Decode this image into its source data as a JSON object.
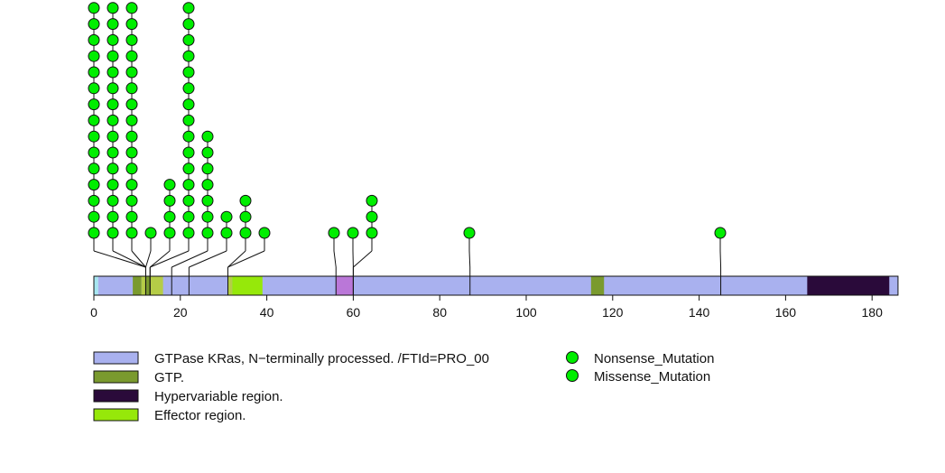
{
  "chart_data": {
    "type": "lollipop",
    "protein_length": 186,
    "x_ticks": [
      0,
      20,
      40,
      60,
      80,
      100,
      120,
      140,
      160,
      180
    ],
    "colors": {
      "mutation": "#00ee00",
      "backbone": "#a9b1ef",
      "gtp": "#7a9a2e",
      "hypervariable": "#2a0a3a",
      "effector": "#96e80a",
      "gtp_effector_overlap": "#b5cc47",
      "ks_motif": "#ba77d8",
      "n_term": "#a6e6f0"
    },
    "domains": [
      {
        "start": 0,
        "end": 1,
        "kind": "n_term"
      },
      {
        "start": 1,
        "end": 186,
        "kind": "backbone"
      },
      {
        "start": 9,
        "end": 11,
        "kind": "gtp"
      },
      {
        "start": 11,
        "end": 12,
        "kind": "gtp_effector_overlap"
      },
      {
        "start": 12,
        "end": 13,
        "kind": "gtp"
      },
      {
        "start": 13,
        "end": 16,
        "kind": "gtp_effector_overlap"
      },
      {
        "start": 31,
        "end": 32,
        "kind": "gtp_effector_overlap"
      },
      {
        "start": 32,
        "end": 39,
        "kind": "effector"
      },
      {
        "start": 56,
        "end": 60,
        "kind": "ks_motif"
      },
      {
        "start": 115,
        "end": 118,
        "kind": "gtp"
      },
      {
        "start": 165,
        "end": 184,
        "kind": "hypervariable"
      },
      {
        "start": 184,
        "end": 186,
        "kind": "backbone"
      }
    ],
    "mutations": [
      {
        "position": 12,
        "count": 15
      },
      {
        "position": 12,
        "count": 15
      },
      {
        "position": 12,
        "count": 15
      },
      {
        "position": 12,
        "count": 1
      },
      {
        "position": 13,
        "count": 4
      },
      {
        "position": 13,
        "count": 15
      },
      {
        "position": 18,
        "count": 7
      },
      {
        "position": 22,
        "count": 2
      },
      {
        "position": 31,
        "count": 3
      },
      {
        "position": 31,
        "count": 1
      },
      {
        "position": 56,
        "count": 1
      },
      {
        "position": 60,
        "count": 1
      },
      {
        "position": 60,
        "count": 3
      },
      {
        "position": 87,
        "count": 1
      },
      {
        "position": 145,
        "count": 1
      }
    ],
    "legend": {
      "domains": [
        {
          "label": "GTPase KRas, N−terminally processed. /FTId=PRO_00",
          "kind": "backbone"
        },
        {
          "label": "GTP.",
          "kind": "gtp"
        },
        {
          "label": "Hypervariable region.",
          "kind": "hypervariable"
        },
        {
          "label": "Effector region.",
          "kind": "effector"
        }
      ],
      "mutation_types": [
        {
          "label": "Nonsense_Mutation",
          "color": "#00ee00"
        },
        {
          "label": "Missense_Mutation",
          "color": "#00ee00"
        }
      ]
    }
  }
}
